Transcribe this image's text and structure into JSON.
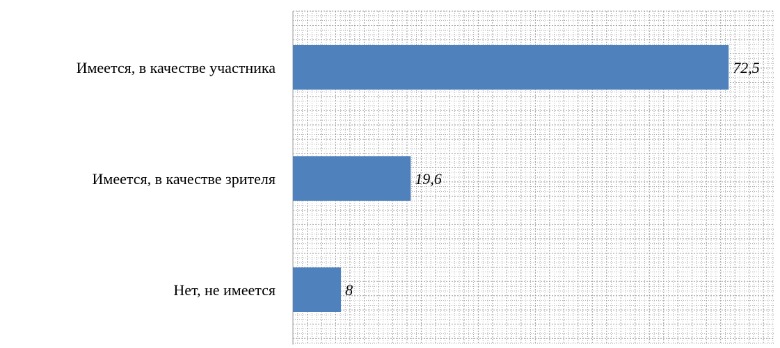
{
  "chart_data": {
    "type": "bar",
    "orientation": "horizontal",
    "categories": [
      "Имеется, в качестве участника",
      "Имеется, в качестве зрителя",
      "Нет, не имеется"
    ],
    "values": [
      72.5,
      19.6,
      8
    ],
    "value_labels": [
      "72,5",
      "19,6",
      "8"
    ],
    "xlim": [
      0,
      80
    ],
    "grid": true,
    "bar_color": "#4F81BD",
    "grid_color": "#9A9A9A"
  }
}
